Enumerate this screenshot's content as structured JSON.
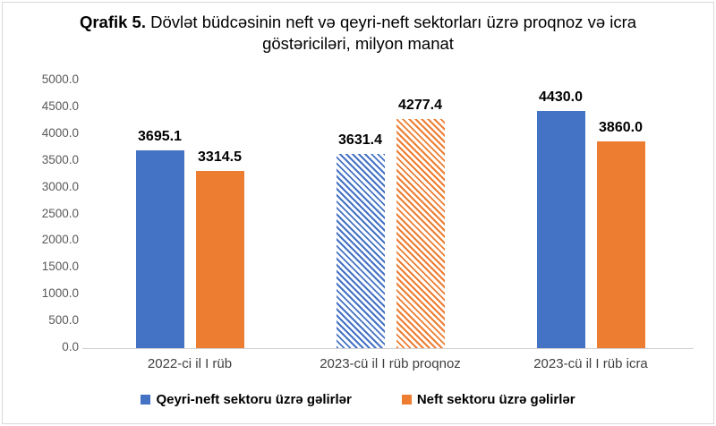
{
  "title": {
    "prefix": "Qrafik 5.",
    "rest": " Dövlət büdcəsinin neft və qeyri-neft sektorları üzrə proqnoz və icra göstəriciləri, milyon manat"
  },
  "chart_data": {
    "type": "bar",
    "categories": [
      "2022-ci il I rüb",
      "2023-cü il I rüb proqnoz",
      "2023-cü il I rüb icra"
    ],
    "series": [
      {
        "name": "Qeyri-neft sektoru üzrə gəlirlər",
        "color": "#4472C4",
        "values": [
          3695.1,
          3631.4,
          4430.0
        ]
      },
      {
        "name": "Neft sektoru üzrə gəlirlər",
        "color": "#ED7D31",
        "values": [
          3314.5,
          4277.4,
          3860.0
        ]
      }
    ],
    "value_labels": [
      "3695.1",
      "3314.5",
      "3631.4",
      "4277.4",
      "4430.0",
      "3860.0"
    ],
    "hatched_group_index": 1,
    "hatch_style": "downward-diagonal",
    "ylim": [
      0,
      5000
    ],
    "ytick_step": 500,
    "ytick_decimals": 1,
    "grid": false,
    "legend_position": "bottom",
    "colors": {
      "axis_label": "#595959",
      "axis_line": "#d0d0d0",
      "category_label": "#3f3f3f",
      "data_label": "#000000"
    }
  }
}
